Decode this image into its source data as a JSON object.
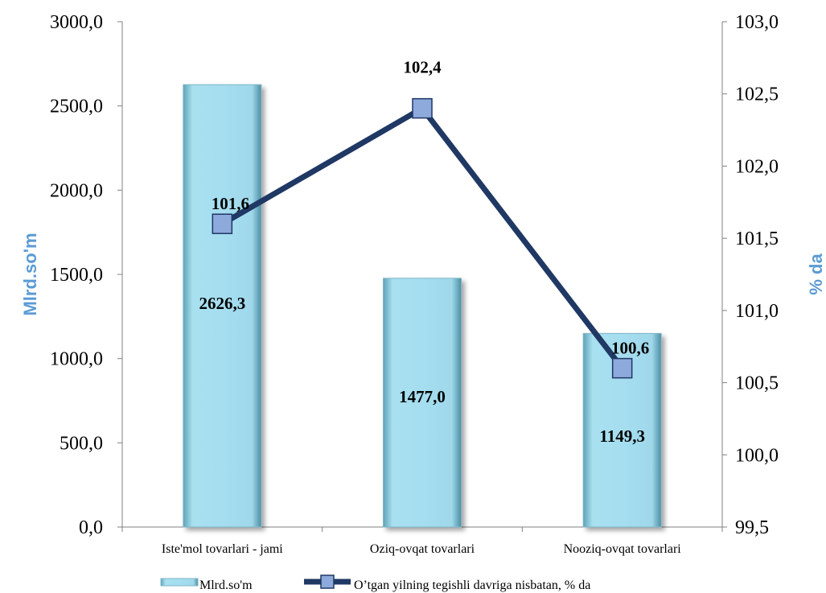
{
  "chart_data": {
    "type": "bar",
    "categories": [
      "Iste'mol tovarlari - jami",
      "Oziq-ovqat tovarlari",
      "Nooziq-ovqat tovarlari"
    ],
    "series": [
      {
        "name": "Mlrd.so'm",
        "type": "bar",
        "axis": "left",
        "values": [
          2626.3,
          1477.0,
          1149.3
        ],
        "labels": [
          "2626,3",
          "1477,0",
          "1149,3"
        ],
        "color": "#a5def0"
      },
      {
        "name": "O’tgan yilning tegishli davriga nisbatan, % da",
        "type": "line",
        "axis": "right",
        "values": [
          101.6,
          102.4,
          100.6
        ],
        "labels": [
          "101,6",
          "102,4",
          "100,6"
        ],
        "color": "#1f3864",
        "marker_color": "#8ea9db"
      }
    ],
    "y_left": {
      "title": "Mlrd.so'm",
      "range": [
        0,
        3000
      ],
      "ticks": [
        "0,0",
        "500,0",
        "1000,0",
        "1500,0",
        "2000,0",
        "2500,0",
        "3000,0"
      ]
    },
    "y_right": {
      "title": "% da",
      "range": [
        99.5,
        103
      ],
      "ticks": [
        "99,5",
        "100,0",
        "100,5",
        "101,0",
        "101,5",
        "102,0",
        "102,5",
        "103,0"
      ]
    },
    "legend": {
      "position": "bottom"
    },
    "grid": false
  }
}
